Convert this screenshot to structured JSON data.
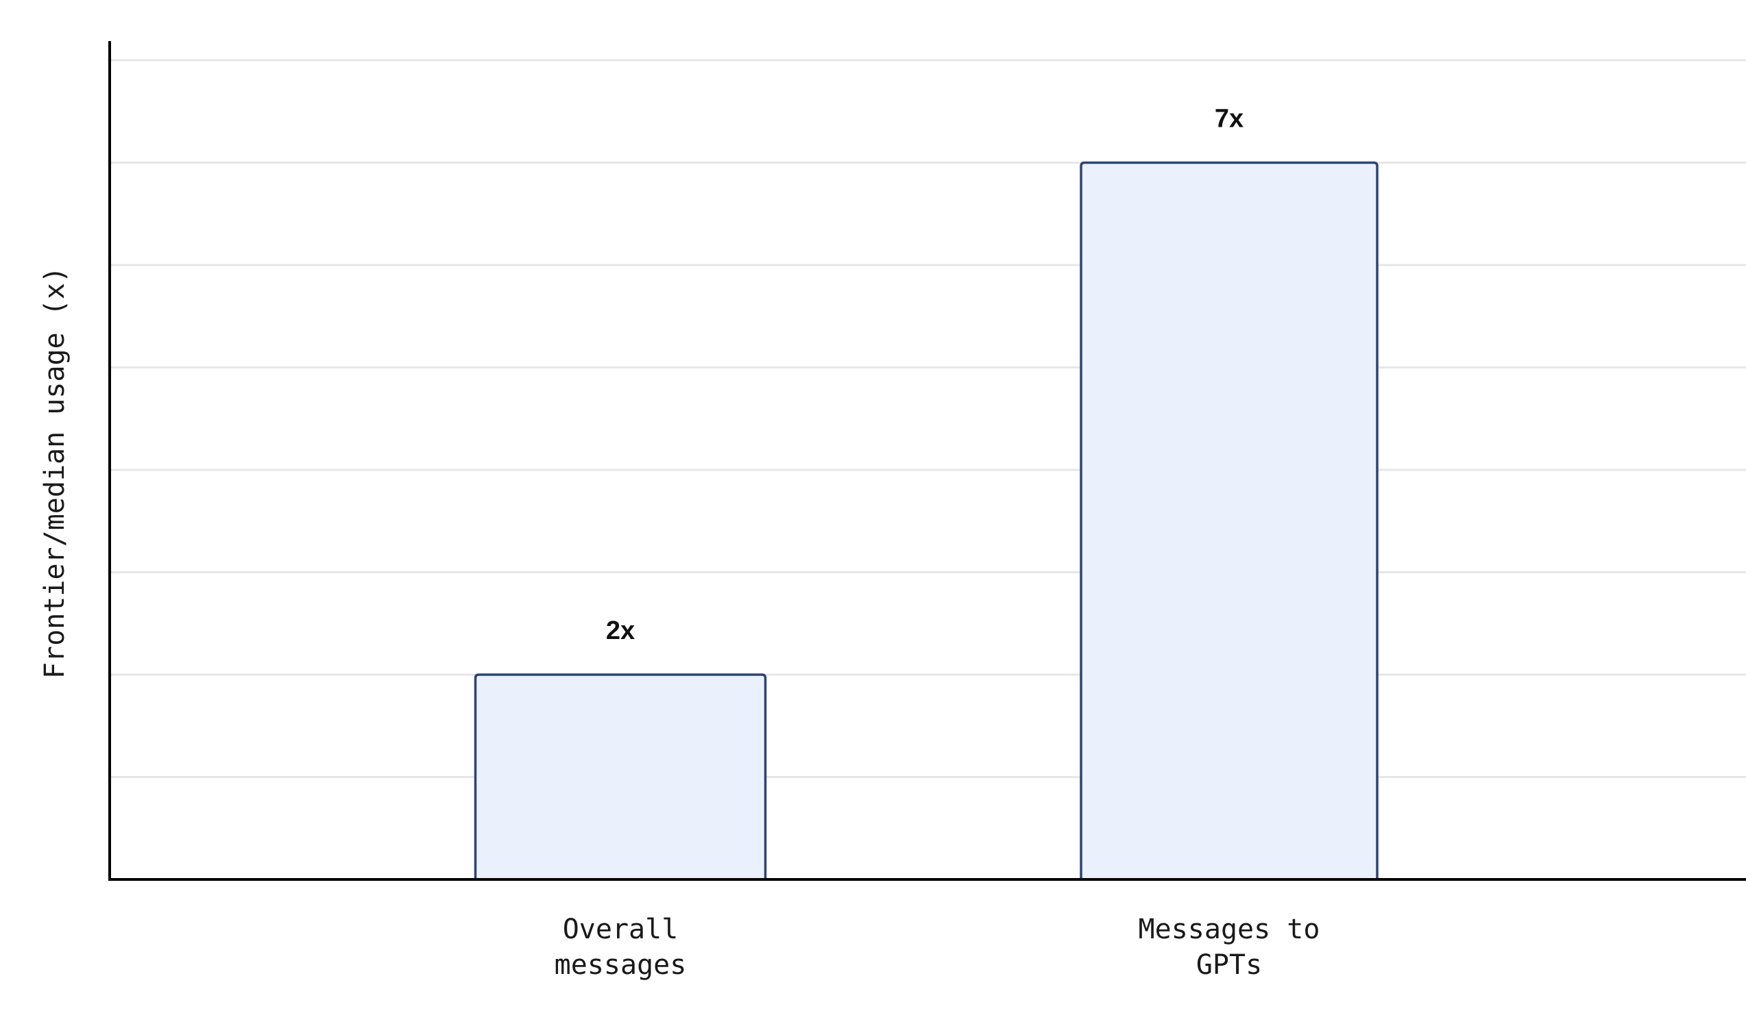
{
  "chart_data": {
    "type": "bar",
    "title": "",
    "xlabel": "",
    "ylabel": "Frontier/median usage (x)",
    "categories": [
      [
        "Overall",
        "messages"
      ],
      [
        "Messages to",
        "GPTs"
      ]
    ],
    "values": [
      2,
      7
    ],
    "data_labels": [
      "2x",
      "7x"
    ],
    "ylim": [
      0,
      8.15
    ],
    "gridline_step": 1,
    "grid": true,
    "legend": "none",
    "colors": {
      "bar_fill": "#eaf1fd",
      "bar_stroke": "#2f4374",
      "grid": "#e6e6e6",
      "axis": "#000000"
    }
  }
}
